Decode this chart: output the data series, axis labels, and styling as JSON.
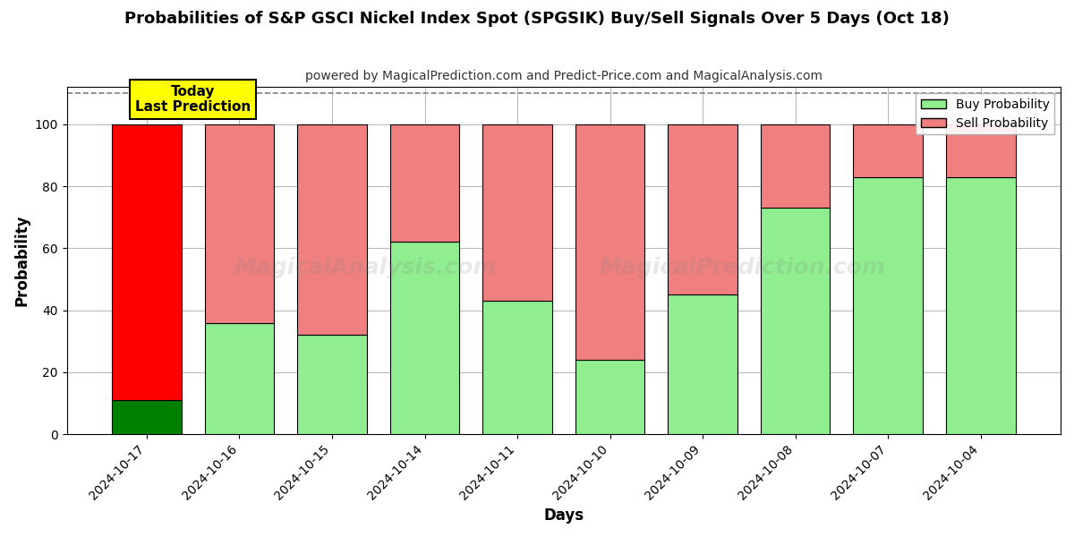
{
  "title": "Probabilities of S&P GSCI Nickel Index Spot (SPGSIK) Buy/Sell Signals Over 5 Days (Oct 18)",
  "subtitle": "powered by MagicalPrediction.com and Predict-Price.com and MagicalAnalysis.com",
  "xlabel": "Days",
  "ylabel": "Probability",
  "categories": [
    "2024-10-17",
    "2024-10-16",
    "2024-10-15",
    "2024-10-14",
    "2024-10-11",
    "2024-10-10",
    "2024-10-09",
    "2024-10-08",
    "2024-10-07",
    "2024-10-04"
  ],
  "buy_values": [
    11,
    36,
    32,
    62,
    43,
    24,
    45,
    73,
    83,
    83
  ],
  "sell_values": [
    89,
    64,
    68,
    38,
    57,
    76,
    55,
    27,
    17,
    17
  ],
  "buy_color_today": "#008000",
  "sell_color_today": "#ff0000",
  "buy_color_other": "#90EE90",
  "sell_color_other": "#F08080",
  "bar_edge_color": "#000000",
  "ylim": [
    0,
    112
  ],
  "yticks": [
    0,
    20,
    40,
    60,
    80,
    100
  ],
  "dashed_line_y": 110,
  "annotation_text": "Today\nLast Prediction",
  "watermark_left": "MagicalAnalysis.com",
  "watermark_right": "MagicalPrediction.com",
  "legend_buy_label": "Buy Probability",
  "legend_sell_label": "Sell Probability",
  "figsize": [
    12,
    6
  ],
  "dpi": 100,
  "bg_color": "#ffffff",
  "grid_color": "#aaaaaa",
  "bar_width": 0.75
}
